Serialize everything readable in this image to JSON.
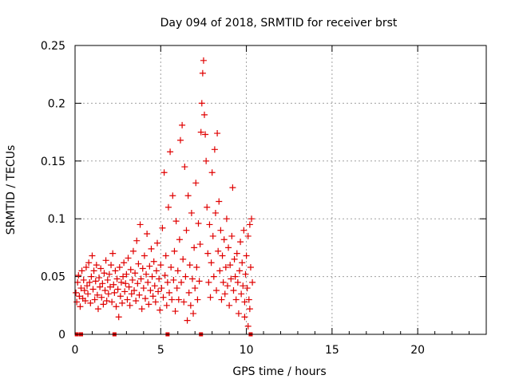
{
  "chart_data": {
    "type": "scatter",
    "title": "Day 094 of 2018, SRMTID for receiver brst",
    "xlabel": "GPS time / hours",
    "ylabel": "SRMTID / TECUs",
    "xlim": [
      0,
      24
    ],
    "ylim": [
      0,
      0.25
    ],
    "x_ticks": [
      0,
      5,
      10,
      15,
      20
    ],
    "x_tick_labels": [
      "0",
      "5",
      "10",
      "15",
      "20"
    ],
    "y_ticks": [
      0,
      0.05,
      0.1,
      0.15,
      0.2,
      0.25
    ],
    "y_tick_labels": [
      "0",
      "0.05",
      "0.1",
      "0.15",
      "0.2",
      "0.25"
    ],
    "grid": true,
    "marker": "plus",
    "series_color": "#e00000",
    "series": [
      {
        "name": "SRMTID",
        "points": [
          [
            0.05,
            0.036
          ],
          [
            0.1,
            0.028
          ],
          [
            0.15,
            0.045
          ],
          [
            0.2,
            0.051
          ],
          [
            0.25,
            0.033
          ],
          [
            0.3,
            0.024
          ],
          [
            0.35,
            0.04
          ],
          [
            0.4,
            0.055
          ],
          [
            0.45,
            0.031
          ],
          [
            0.5,
            0.047
          ],
          [
            0.55,
            0.038
          ],
          [
            0.6,
            0.029
          ],
          [
            0.65,
            0.058
          ],
          [
            0.7,
            0.042
          ],
          [
            0.75,
            0.035
          ],
          [
            0.8,
            0.062
          ],
          [
            0.85,
            0.045
          ],
          [
            0.9,
            0.027
          ],
          [
            0.95,
            0.05
          ],
          [
            1.0,
            0.068
          ],
          [
            1.05,
            0.039
          ],
          [
            1.1,
            0.055
          ],
          [
            1.15,
            0.03
          ],
          [
            1.2,
            0.046
          ],
          [
            1.25,
            0.06
          ],
          [
            1.3,
            0.034
          ],
          [
            1.35,
            0.022
          ],
          [
            1.4,
            0.049
          ],
          [
            1.45,
            0.041
          ],
          [
            1.5,
            0.057
          ],
          [
            1.55,
            0.032
          ],
          [
            1.6,
            0.044
          ],
          [
            1.65,
            0.026
          ],
          [
            1.7,
            0.053
          ],
          [
            1.75,
            0.038
          ],
          [
            1.8,
            0.064
          ],
          [
            1.85,
            0.029
          ],
          [
            1.9,
            0.047
          ],
          [
            1.95,
            0.035
          ],
          [
            2.0,
            0.052
          ],
          [
            2.05,
            0.041
          ],
          [
            2.1,
            0.06
          ],
          [
            2.15,
            0.028
          ],
          [
            2.2,
            0.07
          ],
          [
            2.25,
            0.043
          ],
          [
            2.3,
            0.036
          ],
          [
            2.35,
            0.055
          ],
          [
            2.4,
            0.024
          ],
          [
            2.45,
            0.048
          ],
          [
            2.5,
            0.039
          ],
          [
            2.55,
            0.015
          ],
          [
            2.6,
            0.058
          ],
          [
            2.65,
            0.033
          ],
          [
            2.7,
            0.045
          ],
          [
            2.75,
            0.027
          ],
          [
            2.8,
            0.05
          ],
          [
            2.85,
            0.062
          ],
          [
            2.9,
            0.037
          ],
          [
            2.95,
            0.044
          ],
          [
            3.0,
            0.052
          ],
          [
            3.05,
            0.03
          ],
          [
            3.1,
            0.066
          ],
          [
            3.15,
            0.041
          ],
          [
            3.2,
            0.025
          ],
          [
            3.25,
            0.056
          ],
          [
            3.3,
            0.035
          ],
          [
            3.35,
            0.047
          ],
          [
            3.4,
            0.072
          ],
          [
            3.45,
            0.038
          ],
          [
            3.5,
            0.053
          ],
          [
            3.55,
            0.029
          ],
          [
            3.6,
            0.081
          ],
          [
            3.65,
            0.044
          ],
          [
            3.7,
            0.061
          ],
          [
            3.75,
            0.034
          ],
          [
            3.8,
            0.095
          ],
          [
            3.85,
            0.048
          ],
          [
            3.9,
            0.022
          ],
          [
            3.95,
            0.057
          ],
          [
            4.0,
            0.04
          ],
          [
            4.05,
            0.068
          ],
          [
            4.1,
            0.031
          ],
          [
            4.15,
            0.052
          ],
          [
            4.2,
            0.087
          ],
          [
            4.25,
            0.045
          ],
          [
            4.3,
            0.026
          ],
          [
            4.35,
            0.059
          ],
          [
            4.4,
            0.038
          ],
          [
            4.45,
            0.074
          ],
          [
            4.5,
            0.05
          ],
          [
            4.55,
            0.033
          ],
          [
            4.6,
            0.063
          ],
          [
            4.65,
            0.042
          ],
          [
            4.7,
            0.028
          ],
          [
            4.75,
            0.055
          ],
          [
            4.8,
            0.079
          ],
          [
            4.85,
            0.037
          ],
          [
            4.9,
            0.048
          ],
          [
            4.95,
            0.021
          ],
          [
            5.0,
            0.06
          ],
          [
            5.05,
            0.04
          ],
          [
            5.1,
            0.092
          ],
          [
            5.15,
            0.032
          ],
          [
            5.2,
            0.14
          ],
          [
            5.25,
            0.051
          ],
          [
            5.3,
            0.068
          ],
          [
            5.35,
            0.025
          ],
          [
            5.4,
            0.045
          ],
          [
            5.45,
            0.11
          ],
          [
            5.5,
            0.036
          ],
          [
            5.55,
            0.158
          ],
          [
            5.6,
            0.058
          ],
          [
            5.65,
            0.03
          ],
          [
            5.7,
            0.12
          ],
          [
            5.75,
            0.047
          ],
          [
            5.8,
            0.072
          ],
          [
            5.85,
            0.02
          ],
          [
            5.9,
            0.098
          ],
          [
            5.95,
            0.04
          ],
          [
            6.0,
            0.055
          ],
          [
            6.05,
            0.03
          ],
          [
            6.1,
            0.082
          ],
          [
            6.15,
            0.168
          ],
          [
            6.2,
            0.045
          ],
          [
            6.25,
            0.181
          ],
          [
            6.3,
            0.065
          ],
          [
            6.35,
            0.028
          ],
          [
            6.4,
            0.145
          ],
          [
            6.45,
            0.05
          ],
          [
            6.5,
            0.09
          ],
          [
            6.55,
            0.012
          ],
          [
            6.6,
            0.12
          ],
          [
            6.65,
            0.036
          ],
          [
            6.7,
            0.06
          ],
          [
            6.75,
            0.025
          ],
          [
            6.8,
            0.105
          ],
          [
            6.85,
            0.048
          ],
          [
            6.9,
            0.018
          ],
          [
            6.95,
            0.075
          ],
          [
            7.0,
            0.04
          ],
          [
            7.05,
            0.131
          ],
          [
            7.1,
            0.058
          ],
          [
            7.15,
            0.03
          ],
          [
            7.2,
            0.096
          ],
          [
            7.25,
            0.046
          ],
          [
            7.3,
            0.078
          ],
          [
            7.35,
            0.175
          ],
          [
            7.4,
            0.2
          ],
          [
            7.45,
            0.226
          ],
          [
            7.5,
            0.237
          ],
          [
            7.55,
            0.19
          ],
          [
            7.6,
            0.173
          ],
          [
            7.65,
            0.15
          ],
          [
            7.7,
            0.11
          ],
          [
            7.75,
            0.07
          ],
          [
            7.8,
            0.045
          ],
          [
            7.85,
            0.095
          ],
          [
            7.9,
            0.032
          ],
          [
            7.95,
            0.062
          ],
          [
            8.0,
            0.14
          ],
          [
            8.05,
            0.085
          ],
          [
            8.1,
            0.05
          ],
          [
            8.15,
            0.16
          ],
          [
            8.2,
            0.105
          ],
          [
            8.25,
            0.038
          ],
          [
            8.3,
            0.174
          ],
          [
            8.35,
            0.072
          ],
          [
            8.4,
            0.115
          ],
          [
            8.45,
            0.055
          ],
          [
            8.5,
            0.09
          ],
          [
            8.55,
            0.03
          ],
          [
            8.6,
            0.068
          ],
          [
            8.65,
            0.045
          ],
          [
            8.7,
            0.082
          ],
          [
            8.75,
            0.035
          ],
          [
            8.8,
            0.058
          ],
          [
            8.85,
            0.1
          ],
          [
            8.9,
            0.042
          ],
          [
            8.95,
            0.075
          ],
          [
            9.0,
            0.025
          ],
          [
            9.05,
            0.06
          ],
          [
            9.1,
            0.048
          ],
          [
            9.15,
            0.085
          ],
          [
            9.2,
            0.127
          ],
          [
            9.25,
            0.038
          ],
          [
            9.3,
            0.065
          ],
          [
            9.35,
            0.05
          ],
          [
            9.4,
            0.03
          ],
          [
            9.45,
            0.07
          ],
          [
            9.5,
            0.045
          ],
          [
            9.55,
            0.018
          ],
          [
            9.6,
            0.055
          ],
          [
            9.65,
            0.08
          ],
          [
            9.7,
            0.035
          ],
          [
            9.75,
            0.062
          ],
          [
            9.8,
            0.042
          ],
          [
            9.85,
            0.09
          ],
          [
            9.9,
            0.028
          ],
          [
            9.95,
            0.052
          ],
          [
            10.0,
            0.068
          ],
          [
            10.05,
            0.04
          ],
          [
            10.1,
            0.085
          ],
          [
            10.15,
            0.03
          ],
          [
            10.2,
            0.095
          ],
          [
            10.25,
            0.058
          ],
          [
            10.3,
            0.1
          ],
          [
            10.35,
            0.045
          ],
          [
            10.2,
            0.022
          ],
          [
            10.1,
            0.007
          ],
          [
            9.9,
            0.015
          ]
        ]
      }
    ],
    "baseline_markers_x": [
      0.1,
      0.35,
      2.3,
      5.4,
      7.35,
      10.25
    ]
  }
}
